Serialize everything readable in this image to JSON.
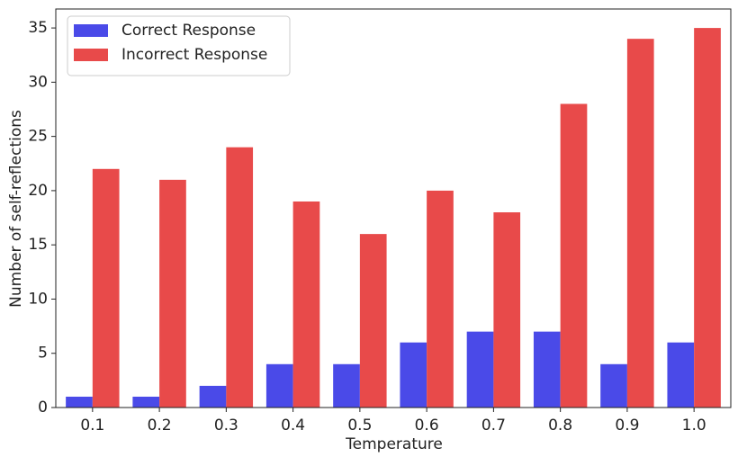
{
  "chart_data": {
    "type": "bar",
    "x_label": "Temperature",
    "y_label": "Number of self-reflections",
    "categories": [
      "0.1",
      "0.2",
      "0.3",
      "0.4",
      "0.5",
      "0.6",
      "0.7",
      "0.8",
      "0.9",
      "1.0"
    ],
    "series": [
      {
        "name": "Correct Response",
        "color": "#4a4ae8",
        "values": [
          1,
          1,
          2,
          4,
          4,
          6,
          7,
          7,
          4,
          6
        ]
      },
      {
        "name": "Incorrect Response",
        "color": "#e84a4a",
        "values": [
          22,
          21,
          24,
          19,
          16,
          20,
          18,
          28,
          34,
          35
        ]
      }
    ],
    "ylim": [
      0,
      36.75
    ],
    "yticks": [
      0,
      5,
      10,
      15,
      20,
      25,
      30,
      35
    ],
    "legend": "upper left",
    "grid": false
  }
}
